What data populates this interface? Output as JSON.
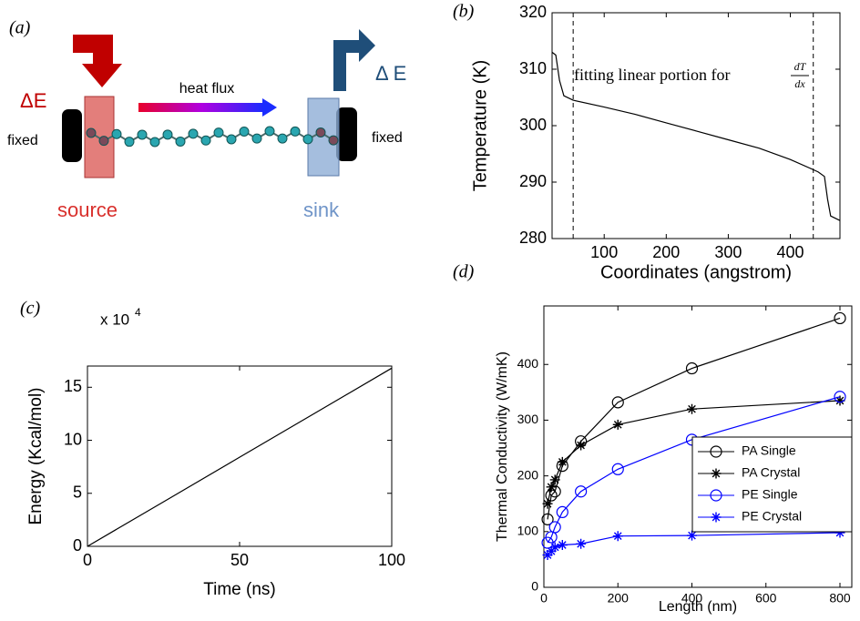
{
  "diagram": {
    "panel_label": "(a)",
    "energy_in": "ΔE",
    "energy_out": "Δ E",
    "flow": "heat flux",
    "left_end": "fixed",
    "right_end": "fixed",
    "source": "source",
    "sink": "sink"
  },
  "chart_data": [
    {
      "type": "line",
      "panel_label": "(b)",
      "x_label": "Coordinates (angstrom)",
      "y_label": "Temperature (K)",
      "annotation": "fitting linear portion for",
      "annotation_fraction": [
        "dT",
        "dx"
      ],
      "x": [
        16,
        22,
        28,
        35,
        50,
        100,
        150,
        200,
        250,
        300,
        350,
        400,
        435,
        445,
        455,
        460,
        465,
        480
      ],
      "values": [
        313,
        312.5,
        308,
        305.3,
        304.5,
        303.3,
        302.0,
        300.5,
        299.0,
        297.5,
        296.0,
        294.0,
        292.3,
        291.8,
        291.0,
        287,
        284,
        283.2
      ],
      "color": "#000000",
      "vlines": [
        50,
        437
      ],
      "xlim": [
        16,
        480
      ],
      "xticks": [
        100,
        200,
        300,
        400
      ],
      "ylim": [
        280,
        320
      ],
      "yticks": [
        280,
        290,
        300,
        310,
        320
      ]
    },
    {
      "type": "line",
      "panel_label": "(c)",
      "x_label": "Time (ns)",
      "y_label": "Energy (Kcal/mol)",
      "y_multiplier": "x 10",
      "y_multiplier_exp": "4",
      "x": [
        0,
        25,
        50,
        75,
        100
      ],
      "values": [
        0,
        4.2,
        8.4,
        12.6,
        16.8
      ],
      "color": "#000000",
      "xlim": [
        0,
        100
      ],
      "xticks": [
        0,
        50,
        100
      ],
      "ylim": [
        0,
        17
      ],
      "yticks": [
        0,
        5,
        10,
        15
      ]
    },
    {
      "type": "line",
      "panel_label": "(d)",
      "x_label": "Length (nm)",
      "y_label": "Thermal Conductivity (W/mK)",
      "x": [
        10,
        20,
        30,
        50,
        100,
        200,
        400,
        800
      ],
      "series": [
        {
          "name": "PA Single",
          "color": "#000000",
          "marker": "circle",
          "values": [
            122,
            165,
            172,
            218,
            262,
            332,
            393,
            483
          ]
        },
        {
          "name": "PA Crystal",
          "color": "#000000",
          "marker": "star",
          "values": [
            150,
            180,
            193,
            225,
            255,
            292,
            320,
            335
          ]
        },
        {
          "name": "PE Single",
          "color": "#0000ff",
          "marker": "circle",
          "values": [
            80,
            90,
            108,
            135,
            172,
            212,
            265,
            342
          ]
        },
        {
          "name": "PE Crystal",
          "color": "#0000ff",
          "marker": "star",
          "values": [
            58,
            65,
            72,
            76,
            78,
            92,
            93,
            98
          ]
        }
      ],
      "legend": "right",
      "xlim": [
        0,
        832
      ],
      "xticks": [
        0,
        200,
        400,
        600,
        800
      ],
      "ylim": [
        0,
        505
      ],
      "yticks": [
        0,
        100,
        200,
        300,
        400
      ]
    }
  ]
}
